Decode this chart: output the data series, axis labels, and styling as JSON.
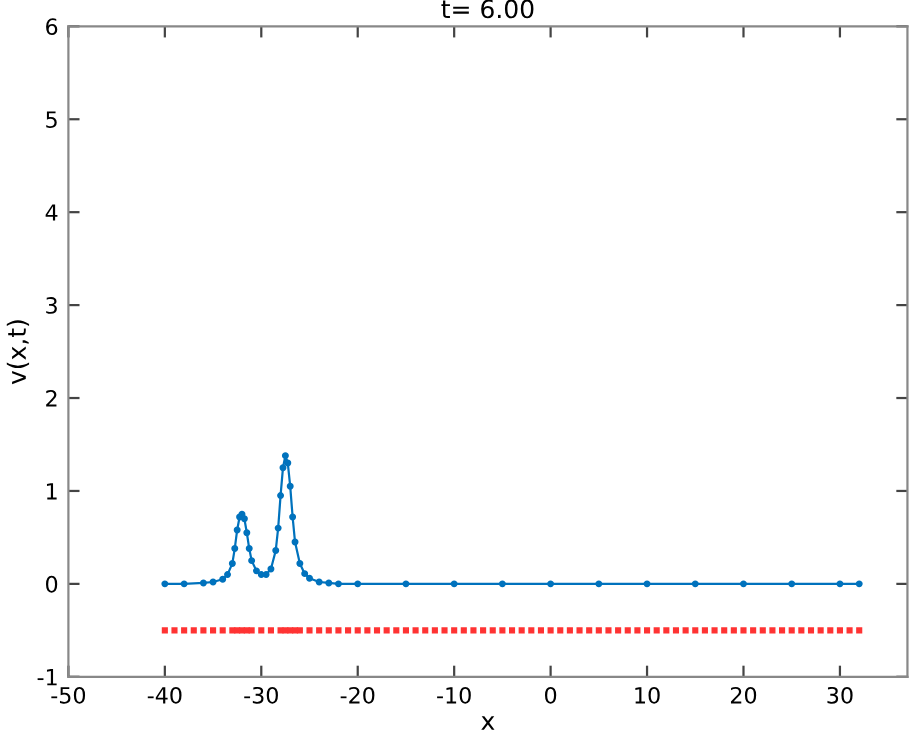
{
  "chart_data": {
    "type": "line",
    "title": "t= 6.00",
    "xlabel": "x",
    "ylabel": "v(x,t)",
    "xlim": [
      -50,
      37
    ],
    "ylim": [
      -1,
      6
    ],
    "xticks": [
      -50,
      -40,
      -30,
      -20,
      -10,
      0,
      10,
      20,
      30
    ],
    "yticks": [
      -1,
      0,
      1,
      2,
      3,
      4,
      5,
      6
    ],
    "grid": false,
    "legend": false,
    "series": [
      {
        "marker": "circle",
        "color": "#0072bd",
        "x": [
          -40,
          -38,
          -36,
          -35,
          -34,
          -33.5,
          -33,
          -32.75,
          -32.5,
          -32.25,
          -32,
          -31.75,
          -31.5,
          -31.25,
          -31,
          -30.5,
          -30,
          -29.5,
          -29,
          -28.5,
          -28.25,
          -28,
          -27.75,
          -27.5,
          -27.25,
          -27,
          -26.75,
          -26.5,
          -26,
          -25.5,
          -25,
          -24,
          -23,
          -22,
          -20,
          -15,
          -10,
          -5,
          0,
          5,
          10,
          15,
          20,
          25,
          30,
          32
        ],
        "values": [
          0,
          0,
          0.01,
          0.02,
          0.05,
          0.1,
          0.22,
          0.38,
          0.58,
          0.72,
          0.75,
          0.7,
          0.55,
          0.38,
          0.25,
          0.14,
          0.1,
          0.1,
          0.16,
          0.36,
          0.6,
          0.95,
          1.25,
          1.38,
          1.3,
          1.05,
          0.72,
          0.45,
          0.22,
          0.11,
          0.06,
          0.02,
          0.01,
          0,
          0,
          0,
          0,
          0,
          0,
          0,
          0,
          0,
          0,
          0,
          0,
          0
        ]
      },
      {
        "type": "scatter",
        "marker": "square",
        "color": "#ff3333",
        "x": [
          -40,
          -39,
          -38,
          -37,
          -36,
          -35,
          -34,
          -33,
          -32.5,
          -32,
          -31.5,
          -31,
          -30,
          -29,
          -28,
          -27.5,
          -27,
          -26.5,
          -26,
          -25,
          -24,
          -23,
          -22,
          -21,
          -20,
          -19,
          -18,
          -17,
          -16,
          -15,
          -14,
          -13,
          -12,
          -11,
          -10,
          -9,
          -8,
          -7,
          -6,
          -5,
          -4,
          -3,
          -2,
          -1,
          0,
          1,
          2,
          3,
          4,
          5,
          6,
          7,
          8,
          9,
          10,
          11,
          12,
          13,
          14,
          15,
          16,
          17,
          18,
          19,
          20,
          21,
          22,
          23,
          24,
          25,
          26,
          27,
          28,
          29,
          30,
          31,
          32
        ],
        "values": [
          -0.5,
          -0.5,
          -0.5,
          -0.5,
          -0.5,
          -0.5,
          -0.5,
          -0.5,
          -0.5,
          -0.5,
          -0.5,
          -0.5,
          -0.5,
          -0.5,
          -0.5,
          -0.5,
          -0.5,
          -0.5,
          -0.5,
          -0.5,
          -0.5,
          -0.5,
          -0.5,
          -0.5,
          -0.5,
          -0.5,
          -0.5,
          -0.5,
          -0.5,
          -0.5,
          -0.5,
          -0.5,
          -0.5,
          -0.5,
          -0.5,
          -0.5,
          -0.5,
          -0.5,
          -0.5,
          -0.5,
          -0.5,
          -0.5,
          -0.5,
          -0.5,
          -0.5,
          -0.5,
          -0.5,
          -0.5,
          -0.5,
          -0.5,
          -0.5,
          -0.5,
          -0.5,
          -0.5,
          -0.5,
          -0.5,
          -0.5,
          -0.5,
          -0.5,
          -0.5,
          -0.5,
          -0.5,
          -0.5,
          -0.5,
          -0.5,
          -0.5,
          -0.5,
          -0.5,
          -0.5,
          -0.5,
          -0.5,
          -0.5,
          -0.5,
          -0.5,
          -0.5,
          -0.5,
          -0.5
        ]
      }
    ]
  }
}
